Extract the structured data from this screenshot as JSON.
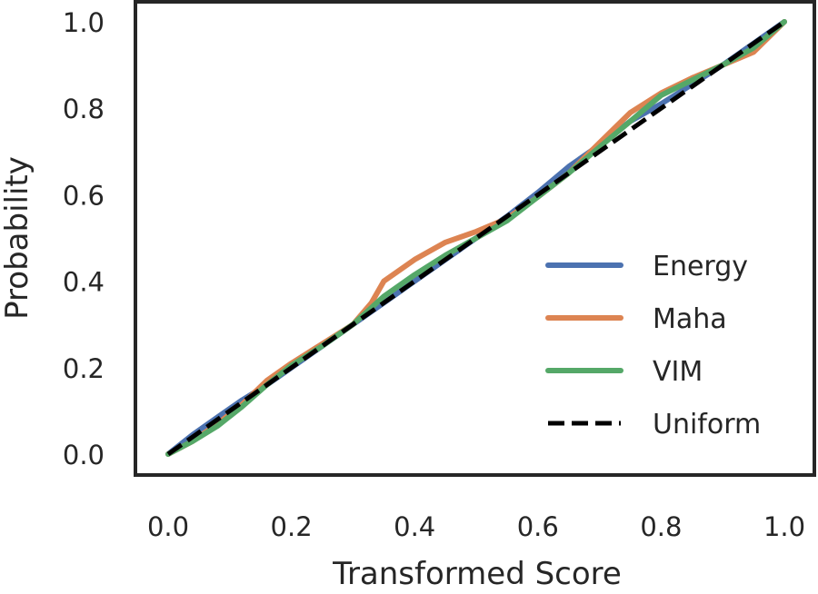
{
  "chart_data": {
    "type": "line",
    "title": "",
    "xlabel": "Transformed Score",
    "ylabel": "Probability",
    "xlim": [
      0.0,
      1.0
    ],
    "ylim": [
      0.0,
      1.0
    ],
    "xticks": [
      "0.0",
      "0.2",
      "0.4",
      "0.6",
      "0.8",
      "1.0"
    ],
    "yticks": [
      "0.0",
      "0.2",
      "0.4",
      "0.6",
      "0.8",
      "1.0"
    ],
    "grid": false,
    "legend_position": "lower-right",
    "series": [
      {
        "name": "Energy",
        "color": "#4c72b0",
        "style": "solid",
        "x": [
          0.0,
          0.04,
          0.08,
          0.12,
          0.16,
          0.2,
          0.25,
          0.3,
          0.35,
          0.4,
          0.45,
          0.5,
          0.55,
          0.6,
          0.65,
          0.7,
          0.75,
          0.8,
          0.85,
          0.9,
          0.95,
          1.0
        ],
        "y": [
          0.0,
          0.045,
          0.085,
          0.125,
          0.16,
          0.2,
          0.25,
          0.3,
          0.35,
          0.4,
          0.45,
          0.5,
          0.55,
          0.605,
          0.665,
          0.715,
          0.77,
          0.81,
          0.855,
          0.9,
          0.95,
          1.0
        ]
      },
      {
        "name": "Maha",
        "color": "#dd8452",
        "style": "solid",
        "x": [
          0.0,
          0.04,
          0.08,
          0.12,
          0.16,
          0.2,
          0.25,
          0.3,
          0.33,
          0.35,
          0.4,
          0.45,
          0.5,
          0.55,
          0.6,
          0.65,
          0.7,
          0.75,
          0.8,
          0.85,
          0.9,
          0.95,
          1.0
        ],
        "y": [
          0.0,
          0.03,
          0.07,
          0.115,
          0.17,
          0.21,
          0.255,
          0.3,
          0.35,
          0.4,
          0.45,
          0.49,
          0.515,
          0.545,
          0.595,
          0.65,
          0.72,
          0.79,
          0.835,
          0.87,
          0.9,
          0.93,
          1.0
        ]
      },
      {
        "name": "VIM",
        "color": "#55a868",
        "style": "solid",
        "x": [
          0.0,
          0.04,
          0.08,
          0.12,
          0.16,
          0.2,
          0.25,
          0.3,
          0.35,
          0.4,
          0.45,
          0.5,
          0.55,
          0.6,
          0.65,
          0.7,
          0.75,
          0.8,
          0.85,
          0.9,
          0.95,
          1.0
        ],
        "y": [
          0.0,
          0.03,
          0.065,
          0.11,
          0.16,
          0.205,
          0.25,
          0.3,
          0.365,
          0.415,
          0.46,
          0.5,
          0.54,
          0.595,
          0.65,
          0.71,
          0.77,
          0.83,
          0.865,
          0.9,
          0.94,
          1.0
        ]
      },
      {
        "name": "Uniform",
        "color": "#000000",
        "style": "dashed",
        "x": [
          0.0,
          1.0
        ],
        "y": [
          0.0,
          1.0
        ]
      }
    ]
  }
}
